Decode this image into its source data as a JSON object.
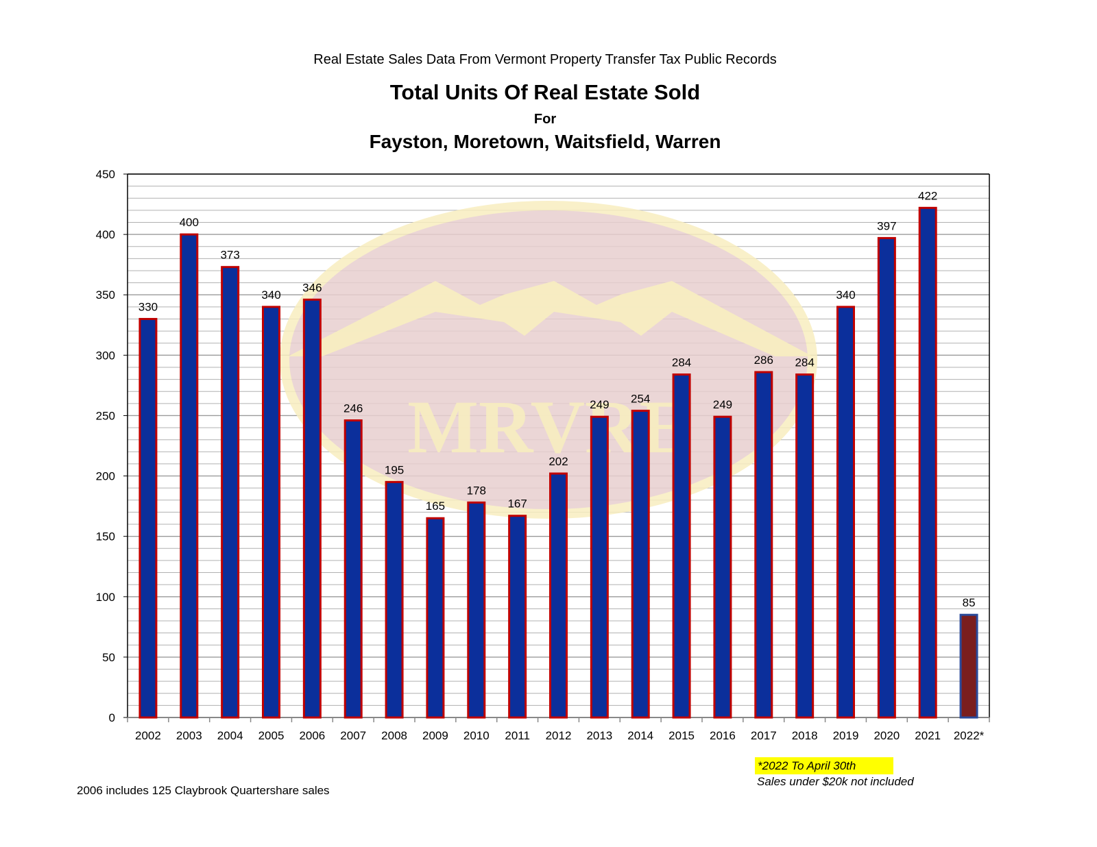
{
  "header": {
    "source": "Real Estate Sales Data From Vermont Property Transfer Tax Public Records",
    "title": "Total Units Of Real Estate Sold",
    "for": "For",
    "subtitle": "Fayston, Moretown, Waitsfield, Warren"
  },
  "watermark": {
    "text": "MRVRE"
  },
  "notes": {
    "footnote_left": "2006 includes 125 Claybrook Quartershare sales",
    "highlight": "*2022 To April 30th",
    "exclusion": "Sales under $20k not included"
  },
  "colors": {
    "bar_fill": "#0b2f9b",
    "bar_border": "#c00000",
    "partial_fill": "#7a1e1e",
    "partial_border": "#2a4a9a",
    "highlight": "#ffff00",
    "grid": "#b0b0b0",
    "watermark_ellipse": "#e8cfcf",
    "watermark_border": "#f8eec0"
  },
  "chart_data": {
    "type": "bar",
    "title": "Total Units Of Real Estate Sold",
    "categories": [
      "2002",
      "2003",
      "2004",
      "2005",
      "2006",
      "2007",
      "2008",
      "2009",
      "2010",
      "2011",
      "2012",
      "2013",
      "2014",
      "2015",
      "2016",
      "2017",
      "2018",
      "2019",
      "2020",
      "2021",
      "2022*"
    ],
    "values": [
      330,
      400,
      373,
      340,
      346,
      246,
      195,
      165,
      178,
      167,
      202,
      249,
      254,
      284,
      249,
      286,
      284,
      340,
      397,
      422,
      85
    ],
    "partial_category": "2022*",
    "ylim": [
      0,
      450
    ],
    "yticks": [
      0,
      50,
      100,
      150,
      200,
      250,
      300,
      350,
      400,
      450
    ],
    "grid": true,
    "data_labels": true,
    "legend": "none"
  }
}
